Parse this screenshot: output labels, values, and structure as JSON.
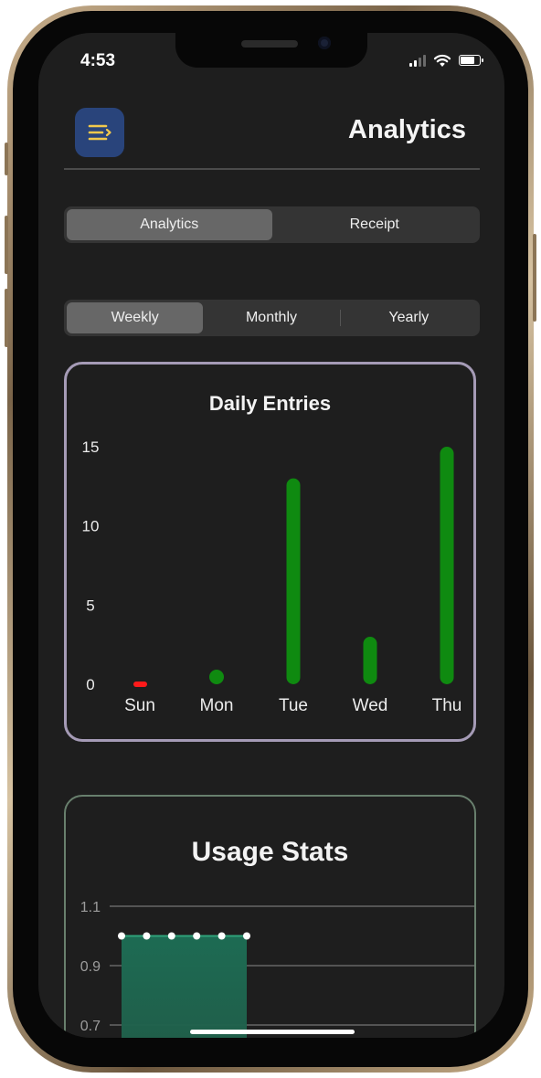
{
  "status_bar": {
    "time": "4:53"
  },
  "header": {
    "title": "Analytics",
    "menu_icon": "menu-lines-icon",
    "accent": "#29447b"
  },
  "tabs": {
    "items": [
      {
        "label": "Analytics",
        "active": true
      },
      {
        "label": "Receipt",
        "active": false
      }
    ]
  },
  "period": {
    "items": [
      {
        "label": "Weekly",
        "active": true
      },
      {
        "label": "Monthly",
        "active": false
      },
      {
        "label": "Yearly",
        "active": false
      }
    ]
  },
  "chart_data": [
    {
      "type": "bar",
      "title": "Daily Entries",
      "categories": [
        "Sun",
        "Mon",
        "Tue",
        "Wed",
        "Thu"
      ],
      "values": [
        0,
        0,
        13,
        3,
        15
      ],
      "colors": [
        "#ff1a1a",
        "#0f8a10",
        "#0f8a10",
        "#0f8a10",
        "#0f8a10"
      ],
      "yticks": [
        0,
        5,
        10,
        15
      ],
      "ylim": [
        0,
        15
      ]
    },
    {
      "type": "area",
      "title": "Usage Stats",
      "x": [
        1,
        2,
        3,
        4,
        5,
        6
      ],
      "values": [
        1,
        1,
        1,
        1,
        1,
        1
      ],
      "yticks": [
        0.7,
        0.9,
        1.1
      ],
      "ylim": [
        0.7,
        1.1
      ],
      "color": "#1d6b53"
    }
  ]
}
